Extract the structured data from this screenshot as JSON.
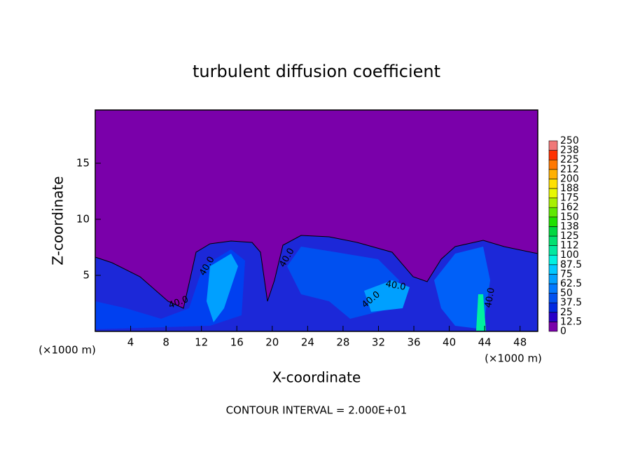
{
  "chart_data": {
    "type": "contour",
    "title": "turbulent diffusion coefficient",
    "x_label": "X-coordinate",
    "y_label": "Z-coordinate",
    "x_unit_left": "(×1000 m)",
    "x_unit_right": "(×1000 m)",
    "footer": "CONTOUR INTERVAL = 2.000E+01",
    "xlim": [
      0,
      50
    ],
    "ylim": [
      0,
      19.75
    ],
    "xticks": [
      4,
      8,
      12,
      16,
      20,
      24,
      28,
      32,
      36,
      40,
      44,
      48
    ],
    "yticks": [
      5,
      10,
      15
    ],
    "contour_labels": [
      "40.0",
      "40.0",
      "40.0",
      "40.0",
      "40.0",
      "40.0"
    ],
    "levels": [
      0,
      12.5,
      25,
      37.5,
      50,
      62.5,
      75,
      87.5,
      100,
      112,
      125,
      138,
      150,
      162,
      175,
      188,
      200,
      212,
      225,
      238,
      250
    ],
    "level_colors": [
      "#7a00aa",
      "#2800c8",
      "#0028e0",
      "#0050f0",
      "#0078ff",
      "#00a0ff",
      "#00c8ff",
      "#00f0e0",
      "#00e8a0",
      "#00e070",
      "#00d840",
      "#20e000",
      "#60e800",
      "#a8f000",
      "#e8f800",
      "#ffe000",
      "#ffb000",
      "#ff7800",
      "#ff3000",
      "#f07878"
    ]
  }
}
